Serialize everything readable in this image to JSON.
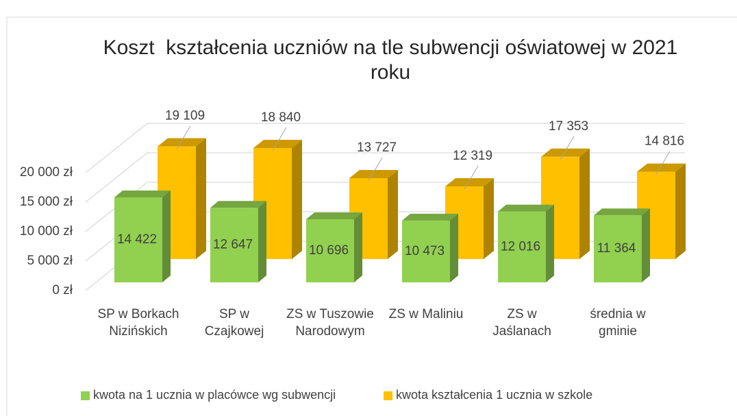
{
  "chart_data": {
    "type": "bar3d",
    "title": "Koszt  kształcenia uczniów na tle subwencji oświatowej w 2021 roku",
    "categories": [
      "SP w Borkach Nizińskich",
      "SP w Czajkowej",
      "ZS w Tuszowie Narodowym",
      "ZS w Maliniu",
      "ZS w Jaślanach",
      "średnia w gminie"
    ],
    "series": [
      {
        "name": "kwota na 1 ucznia w placówce wg subwencji",
        "color": "#92d050",
        "values": [
          14422,
          12647,
          10696,
          10473,
          12016,
          11364
        ],
        "value_labels": [
          "14 422",
          "12 647",
          "10 696",
          "10 473",
          "12 016",
          "11 364"
        ]
      },
      {
        "name": "kwota kształcenia 1 ucznia w szkole",
        "color": "#ffc000",
        "values": [
          19109,
          18840,
          13727,
          12319,
          17353,
          14816
        ],
        "value_labels": [
          "19 109",
          "18 840",
          "13 727",
          "12 319",
          "17 353",
          "14 816"
        ]
      }
    ],
    "ylim": [
      0,
      20000
    ],
    "yticks": [
      {
        "value": 0,
        "label": "0 zł"
      },
      {
        "value": 5000,
        "label": "5 000 zł"
      },
      {
        "value": 10000,
        "label": "10 000 zł"
      },
      {
        "value": 15000,
        "label": "15 000 zł"
      },
      {
        "value": 20000,
        "label": "20 000 zł"
      }
    ],
    "grid": true,
    "legend": "bottom"
  }
}
